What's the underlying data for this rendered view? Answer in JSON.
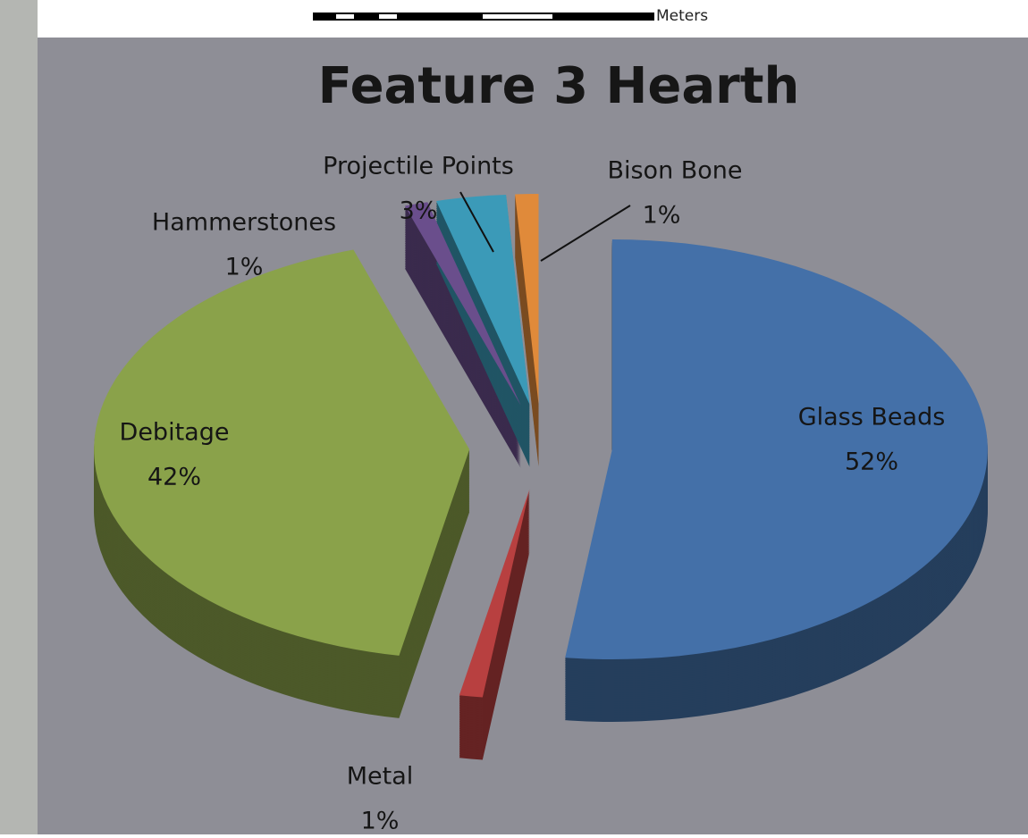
{
  "scale_bar": {
    "unit": "Meters"
  },
  "chart_data": {
    "type": "pie",
    "title": "Feature 3 Hearth",
    "categories": [
      "Glass Beads",
      "Metal",
      "Debitage",
      "Hammerstones",
      "Projectile Points",
      "Bison Bone"
    ],
    "values": [
      52,
      1,
      42,
      1,
      3,
      1
    ],
    "value_labels": [
      "52%",
      "1%",
      "42%",
      "1%",
      "3%",
      "1%"
    ],
    "colors": [
      "#4470a8",
      "#b84040",
      "#8aa24a",
      "#6a4e8c",
      "#3b9ab8",
      "#e08a3a"
    ]
  }
}
